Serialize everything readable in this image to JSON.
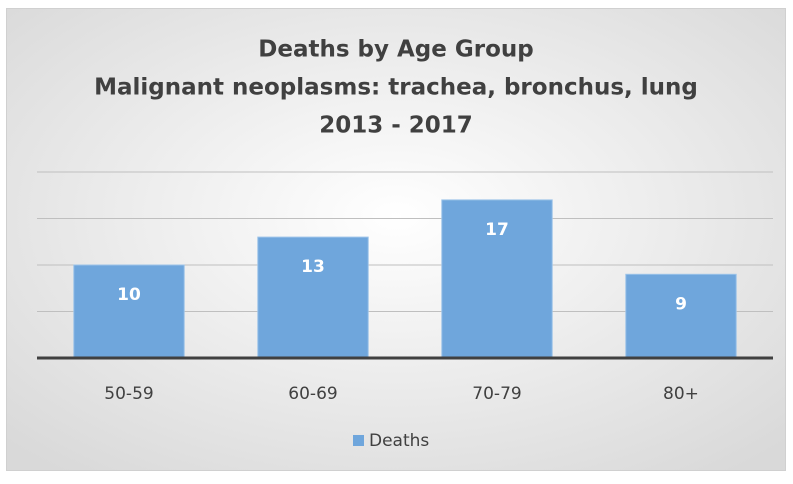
{
  "chart_data": {
    "type": "bar",
    "title": [
      "Deaths by Age Group",
      "Malignant neoplasms: trachea, bronchus, lung",
      "2013 - 2017"
    ],
    "categories": [
      "50-59",
      "60-69",
      "70-79",
      "80+"
    ],
    "series": [
      {
        "name": "Deaths",
        "color": "#6fa6dc",
        "values": [
          10,
          13,
          17,
          9
        ]
      }
    ],
    "ylim": [
      0,
      20
    ],
    "yticks": [
      0,
      5,
      10,
      15,
      20
    ],
    "grid": true,
    "legend": "bottom"
  }
}
